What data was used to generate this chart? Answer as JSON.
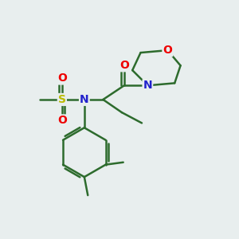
{
  "background_color": "#e8eeee",
  "bond_color": "#2d6b2d",
  "bond_width": 1.8,
  "atom_colors": {
    "O": "#ee0000",
    "N": "#2222cc",
    "S": "#bbbb00",
    "C": "#2d6b2d"
  },
  "font_size": 10,
  "fig_size": [
    3.0,
    3.0
  ],
  "dpi": 100,
  "xlim": [
    0,
    10
  ],
  "ylim": [
    0,
    10
  ]
}
